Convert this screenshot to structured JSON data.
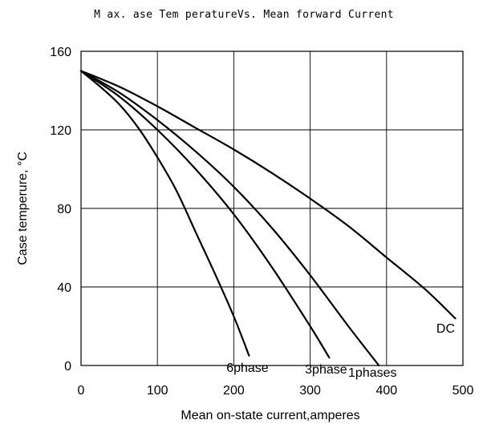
{
  "chart_data": {
    "type": "line",
    "title": "M ax. ase Tem peratureVs. Mean forward Current",
    "xlabel": "Mean on-state current,amperes",
    "ylabel": "Case temperure, °C",
    "xlim": [
      0,
      500
    ],
    "ylim": [
      0,
      160
    ],
    "x_ticks": [
      0,
      100,
      200,
      300,
      400,
      500
    ],
    "y_ticks": [
      0,
      40,
      80,
      120,
      160
    ],
    "x_tick_labels": [
      "0",
      "100",
      "200",
      "300",
      "400",
      "500"
    ],
    "y_tick_labels": [
      "0",
      "40",
      "80",
      "120",
      "160"
    ],
    "grid": true,
    "series": [
      {
        "name": "6phase",
        "x": [
          0,
          25,
          50,
          75,
          100,
          125,
          150,
          175,
          200,
          220
        ],
        "y": [
          150,
          142,
          133,
          121,
          106,
          89,
          68,
          47,
          25,
          5
        ]
      },
      {
        "name": "3phase",
        "x": [
          0,
          50,
          100,
          150,
          200,
          250,
          300,
          325
        ],
        "y": [
          150,
          137,
          120,
          100,
          77,
          50,
          20,
          4
        ]
      },
      {
        "name": "1phases",
        "x": [
          0,
          50,
          100,
          150,
          200,
          250,
          300,
          350,
          390
        ],
        "y": [
          150,
          139,
          125,
          109,
          91,
          70,
          46,
          20,
          0
        ]
      },
      {
        "name": "DC",
        "x": [
          0,
          50,
          100,
          150,
          200,
          250,
          300,
          350,
          400,
          450,
          490
        ],
        "y": [
          150,
          142,
          132,
          121,
          110,
          98,
          85,
          71,
          55,
          39,
          24
        ]
      }
    ]
  }
}
